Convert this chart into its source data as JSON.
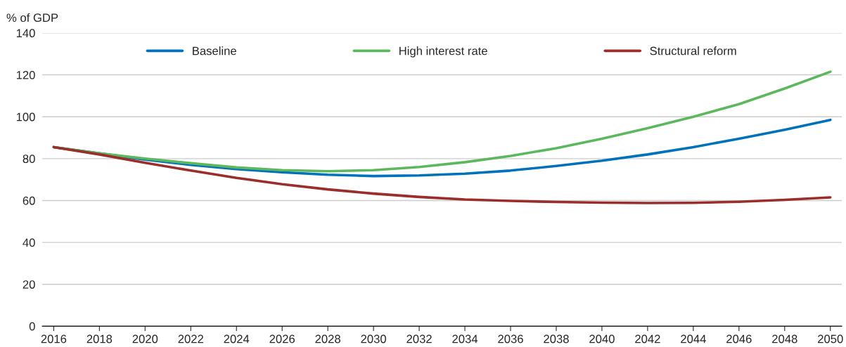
{
  "chart_data": {
    "type": "line",
    "ylabel": "% of GDP",
    "x": [
      2016,
      2018,
      2020,
      2022,
      2024,
      2026,
      2028,
      2030,
      2032,
      2034,
      2036,
      2038,
      2040,
      2042,
      2044,
      2046,
      2048,
      2050
    ],
    "series": [
      {
        "name": "Baseline",
        "color": "#0072bc",
        "values": [
          85.5,
          82.5,
          79.5,
          77,
          75,
          73.5,
          72.3,
          71.7,
          72,
          72.8,
          74.3,
          76.5,
          79,
          82,
          85.5,
          89.5,
          93.8,
          98.5
        ]
      },
      {
        "name": "High interest rate",
        "color": "#5cb85c",
        "values": [
          85.5,
          82.5,
          80,
          77.8,
          75.8,
          74.5,
          74,
          74.5,
          76,
          78.3,
          81.3,
          85,
          89.5,
          94.5,
          100,
          106,
          113.5,
          121.5
        ]
      },
      {
        "name": "Structural reform",
        "color": "#9b2d2a",
        "values": [
          85.5,
          82,
          78,
          74.3,
          70.8,
          67.8,
          65.3,
          63.3,
          61.7,
          60.5,
          59.8,
          59.3,
          59,
          58.8,
          58.9,
          59.4,
          60.3,
          61.5
        ]
      }
    ],
    "xlim": [
      2015.5,
      2050.5
    ],
    "xticks": [
      2016,
      2018,
      2020,
      2022,
      2024,
      2026,
      2028,
      2030,
      2032,
      2034,
      2036,
      2038,
      2040,
      2042,
      2044,
      2046,
      2048,
      2050
    ],
    "ylim": [
      0,
      140
    ],
    "yticks": [
      0,
      20,
      40,
      60,
      80,
      100,
      120,
      140
    ],
    "grid": "y",
    "legend": "top",
    "line_style": "solid",
    "marker": "none"
  }
}
